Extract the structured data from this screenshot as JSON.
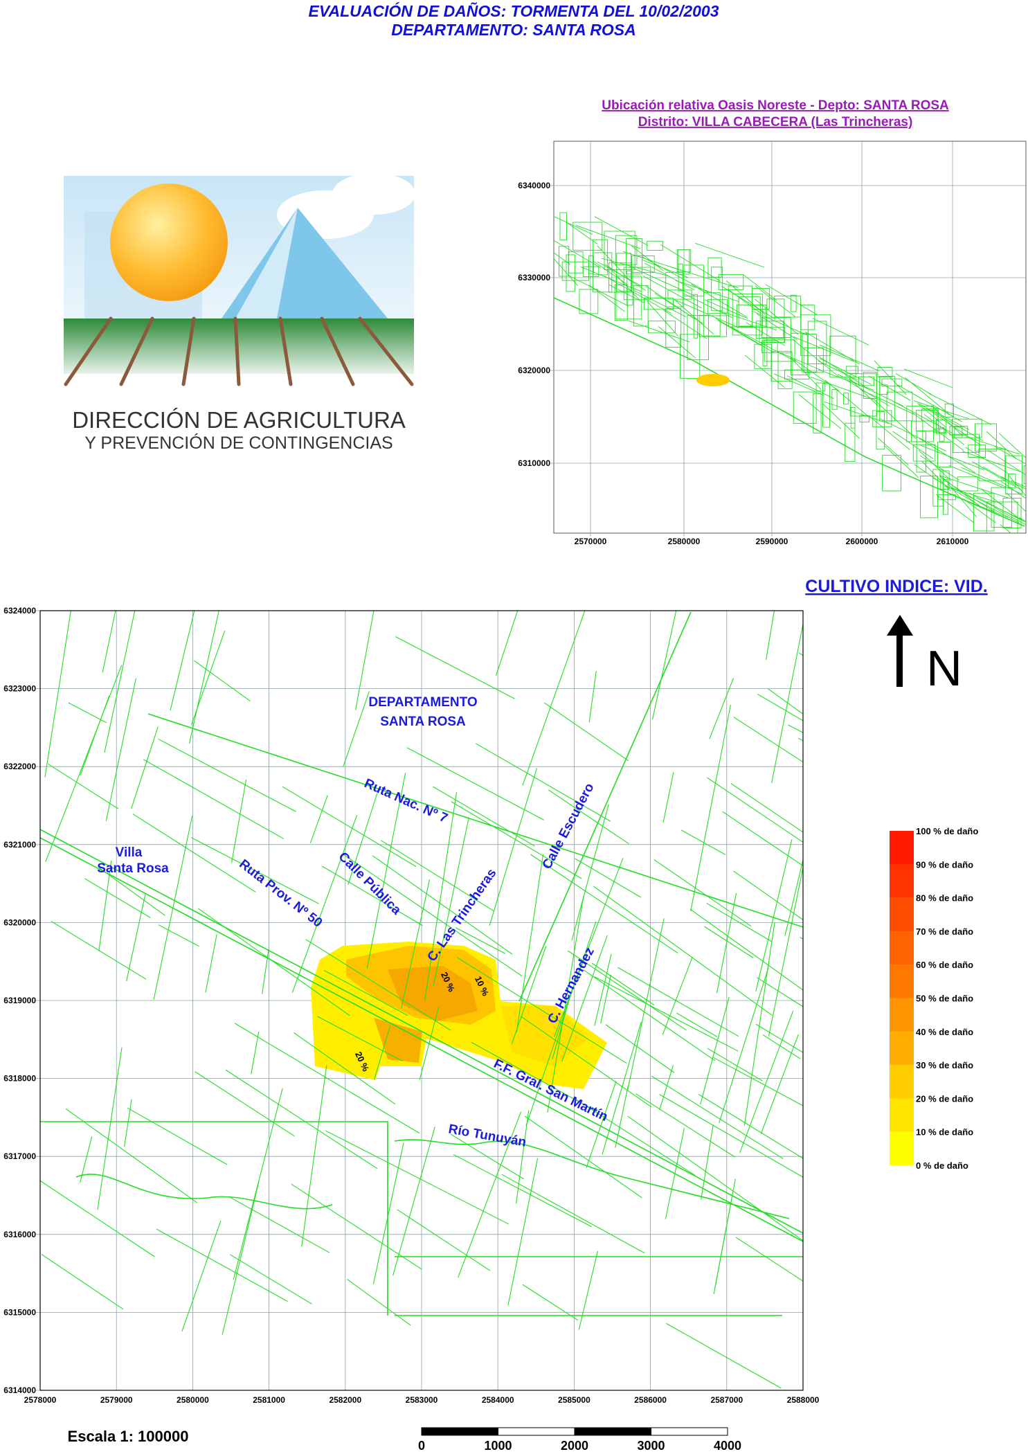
{
  "header": {
    "title": "EVALUACIÓN DE DAÑOS: TORMENTA DEL 10/02/2003",
    "subtitle": "DEPARTAMENTO: SANTA  ROSA"
  },
  "logo": {
    "line1": "DIRECCIÓN DE AGRICULTURA",
    "line2": "Y PREVENCIÓN DE CONTINGENCIAS"
  },
  "inset": {
    "title1": "Ubicación relativa Oasis Noreste - Depto: SANTA  ROSA",
    "title2": "Distrito: VILLA CABECERA (Las Trincheras)",
    "y_ticks": [
      "6340000",
      "6330000",
      "6320000",
      "6310000"
    ],
    "x_ticks": [
      "2570000",
      "2580000",
      "2590000",
      "2600000",
      "2610000"
    ],
    "line_color": "#22dd22",
    "highlight_color": "#ffcc00"
  },
  "cultivo": "CULTIVO INDICE: VID.",
  "north": "N",
  "main_map": {
    "x_ticks": [
      "2578000",
      "2579000",
      "2580000",
      "2581000",
      "2582000",
      "2583000",
      "2584000",
      "2585000",
      "2586000",
      "2587000",
      "2588000"
    ],
    "y_ticks": [
      "6324000",
      "6323000",
      "6322000",
      "6321000",
      "6320000",
      "6319000",
      "6318000",
      "6317000",
      "6316000",
      "6315000",
      "6314000"
    ],
    "labels": {
      "dept1": "DEPARTAMENTO",
      "dept2": "SANTA ROSA",
      "ruta7": "Ruta Nac. Nº 7",
      "escudero": "Calle Escudero",
      "villa1": "Villa",
      "villa2": "Santa Rosa",
      "ruta50": "Ruta Prov. Nº 50",
      "publica": "Calle Pública",
      "trincheras": "C. Las Trincheras",
      "hernandez": "C. Hernandez",
      "ff": "F.F. Gral. San Martín",
      "rio": "Río Tunuyán"
    },
    "damage_labels": [
      "20 %",
      "10 %",
      "20 %"
    ],
    "line_color": "#22dd22"
  },
  "legend": [
    {
      "label": "100 % de daño",
      "color": "#ff1a00"
    },
    {
      "label": "90 % de daño",
      "color": "#ff3300"
    },
    {
      "label": "80 % de daño",
      "color": "#ff4d00"
    },
    {
      "label": "70 % de daño",
      "color": "#ff6200"
    },
    {
      "label": "60 % de daño",
      "color": "#ff7800"
    },
    {
      "label": "50 % de daño",
      "color": "#ff9500"
    },
    {
      "label": "40 % de daño",
      "color": "#ffad00"
    },
    {
      "label": "30 % de daño",
      "color": "#ffcc00"
    },
    {
      "label": "20 % de daño",
      "color": "#ffe400"
    },
    {
      "label": "10 % de daño",
      "color": "#ffff00"
    },
    {
      "label": "0 % de daño",
      "color": ""
    }
  ],
  "scale": {
    "text": "Escala 1: 100000",
    "ticks": [
      "0",
      "1000",
      "2000",
      "3000",
      "4000"
    ]
  }
}
